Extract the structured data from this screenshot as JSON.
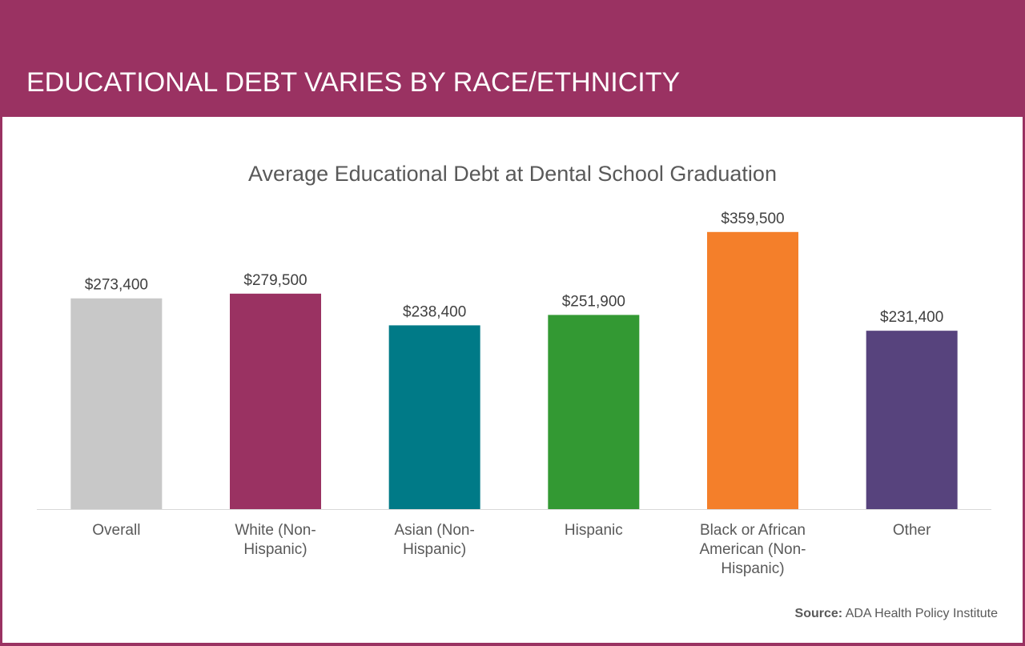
{
  "header": {
    "title": "EDUCATIONAL DEBT VARIES BY RACE/ETHNICITY"
  },
  "source": {
    "label": "Source:",
    "text": "ADA Health Policy Institute"
  },
  "colors": {
    "brand": "#9a3262",
    "axis": "#d9d9d9",
    "text": "#595959"
  },
  "chart_data": {
    "type": "bar",
    "title": "Average Educational Debt at Dental School Graduation",
    "xlabel": "",
    "ylabel": "",
    "ylim": [
      0,
      375000
    ],
    "grid": false,
    "categories": [
      [
        "Overall"
      ],
      [
        "White (Non-",
        "Hispanic)"
      ],
      [
        "Asian (Non-",
        "Hispanic)"
      ],
      [
        "Hispanic"
      ],
      [
        "Black or African",
        "American (Non-",
        "Hispanic)"
      ],
      [
        "Other"
      ]
    ],
    "values": [
      273400,
      279500,
      238400,
      251900,
      359500,
      231400
    ],
    "data_labels": [
      "$273,400",
      "$279,500",
      "$238,400",
      "$251,900",
      "$359,500",
      "$231,400"
    ],
    "bar_colors": [
      "#c8c8c8",
      "#9a3262",
      "#007a87",
      "#339933",
      "#f47f2a",
      "#57437d"
    ]
  }
}
